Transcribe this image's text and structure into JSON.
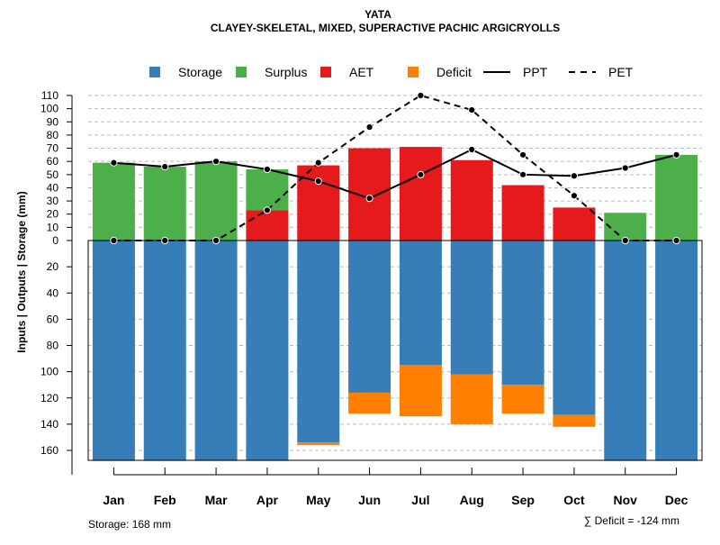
{
  "title": "YATA",
  "subtitle": "CLAYEY-SKELETAL, MIXED, SUPERACTIVE PACHIC ARGICRYOLLS",
  "ylabel": "Inputs | Outputs | Storage    (mm)",
  "footer_left": "Storage: 168 mm",
  "footer_right": "∑ Deficit = -124 mm",
  "colors": {
    "storage": "#377EB8",
    "surplus": "#4DAF4A",
    "aet": "#E41A1C",
    "deficit": "#FF7F00",
    "line": "#000000",
    "grid": "#bbbbbb"
  },
  "legend": [
    {
      "key": "storage",
      "label": "Storage",
      "kind": "box"
    },
    {
      "key": "surplus",
      "label": "Surplus",
      "kind": "box"
    },
    {
      "key": "aet",
      "label": "AET",
      "kind": "box"
    },
    {
      "key": "deficit",
      "label": "Deficit",
      "kind": "box"
    },
    {
      "key": "ppt",
      "label": "PPT",
      "kind": "solid"
    },
    {
      "key": "pet",
      "label": "PET",
      "kind": "dashed"
    }
  ],
  "chart_data": {
    "type": "bar",
    "title": "YATA",
    "subtitle": "CLAYEY-SKELETAL, MIXED, SUPERACTIVE PACHIC ARGICRYOLLS",
    "categories": [
      "Jan",
      "Feb",
      "Mar",
      "Apr",
      "May",
      "Jun",
      "Jul",
      "Aug",
      "Sep",
      "Oct",
      "Nov",
      "Dec"
    ],
    "y_upper_ticks": [
      0,
      10,
      20,
      30,
      40,
      50,
      60,
      70,
      80,
      90,
      100,
      110
    ],
    "y_lower_ticks": [
      20,
      40,
      60,
      80,
      100,
      120,
      140,
      160
    ],
    "ylim_upper": [
      0,
      110
    ],
    "ylim_lower": [
      0,
      168
    ],
    "series_above": [
      {
        "name": "Surplus",
        "color_key": "surplus",
        "base": [
          0,
          0,
          0,
          23,
          0,
          0,
          0,
          0,
          0,
          0,
          0,
          0
        ],
        "values": [
          59,
          56,
          60,
          31,
          0,
          0,
          0,
          0,
          0,
          0,
          21,
          65
        ]
      },
      {
        "name": "AET",
        "color_key": "aet",
        "base": [
          0,
          0,
          0,
          0,
          0,
          0,
          0,
          0,
          0,
          0,
          0,
          0
        ],
        "values": [
          0,
          0,
          0,
          23,
          57,
          70,
          71,
          61,
          42,
          25,
          0,
          0
        ]
      }
    ],
    "series_below": [
      {
        "name": "Storage",
        "color_key": "storage",
        "values": [
          168,
          168,
          168,
          168,
          154,
          116,
          95,
          102,
          110,
          133,
          168,
          168
        ]
      },
      {
        "name": "Deficit",
        "color_key": "deficit",
        "values": [
          0,
          0,
          0,
          0,
          2,
          16,
          39,
          38,
          22,
          9,
          0,
          0
        ]
      }
    ],
    "lines": [
      {
        "name": "PPT",
        "style": "solid",
        "values": [
          59,
          56,
          60,
          54,
          45,
          32,
          50,
          69,
          50,
          49,
          55,
          65
        ]
      },
      {
        "name": "PET",
        "style": "dashed",
        "values": [
          0,
          0,
          0,
          23,
          59,
          86,
          110,
          99,
          65,
          34,
          0,
          0
        ]
      }
    ]
  }
}
